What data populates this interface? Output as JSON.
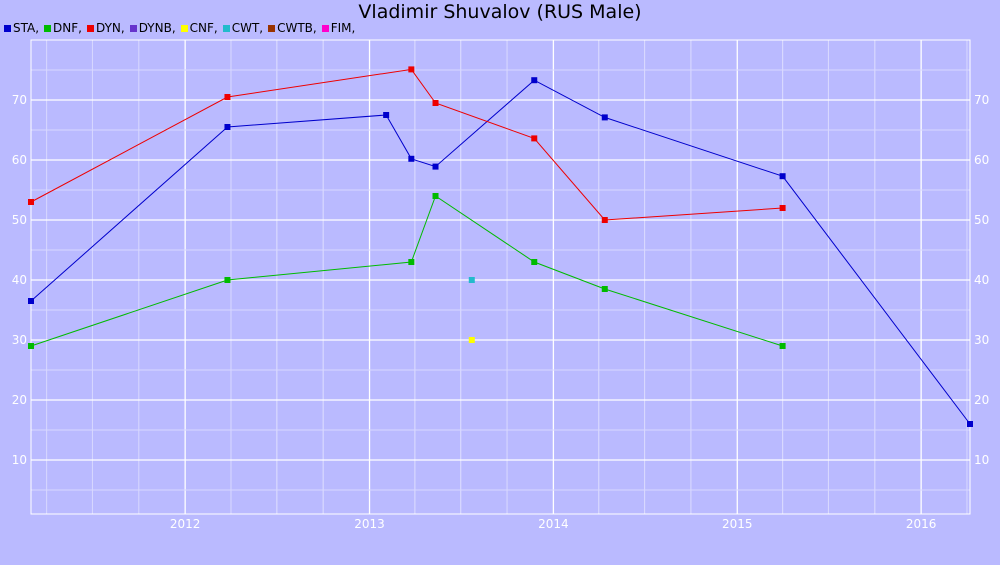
{
  "chart_data": {
    "type": "line",
    "title": "Vladimir Shuvalov (RUS Male)",
    "xlabel": "",
    "ylabel": "",
    "x_ticks": [
      "2012",
      "2013",
      "2014",
      "2015",
      "2016"
    ],
    "y_ticks": [
      10,
      20,
      30,
      40,
      50,
      60,
      70
    ],
    "xlim": [
      "2011-03-01",
      "2016-04-07"
    ],
    "ylim": [
      1,
      80
    ],
    "grid": true,
    "legend_position": "top-left",
    "legend": [
      {
        "label": "STA,",
        "color": "#0000cc"
      },
      {
        "label": "DNF,",
        "color": "#00bb00"
      },
      {
        "label": "DYN,",
        "color": "#ee0000"
      },
      {
        "label": "DYNB,",
        "color": "#6633cc"
      },
      {
        "label": "CNF,",
        "color": "#ffff00"
      },
      {
        "label": "CWT,",
        "color": "#22bbcc"
      },
      {
        "label": "CWTB,",
        "color": "#993300"
      },
      {
        "label": "FIM,",
        "color": "#ff00cc"
      }
    ],
    "series": [
      {
        "name": "STA",
        "color": "#0000cc",
        "points": [
          {
            "x": "2011-03-01",
            "y": 36.5
          },
          {
            "x": "2012-03-25",
            "y": 65.5
          },
          {
            "x": "2013-02-03",
            "y": 67.5
          },
          {
            "x": "2013-03-25",
            "y": 60.2
          },
          {
            "x": "2013-05-12",
            "y": 58.9
          },
          {
            "x": "2013-11-24",
            "y": 73.3
          },
          {
            "x": "2014-04-13",
            "y": 67.1
          },
          {
            "x": "2015-04-01",
            "y": 57.3
          },
          {
            "x": "2016-04-07",
            "y": 16.0
          }
        ]
      },
      {
        "name": "DNF",
        "color": "#00bb00",
        "points": [
          {
            "x": "2011-03-01",
            "y": 29.0
          },
          {
            "x": "2012-03-25",
            "y": 40.0
          },
          {
            "x": "2013-03-25",
            "y": 43.0
          },
          {
            "x": "2013-05-12",
            "y": 54.0
          },
          {
            "x": "2013-11-24",
            "y": 43.0
          },
          {
            "x": "2014-04-13",
            "y": 38.5
          },
          {
            "x": "2015-04-01",
            "y": 29.0
          }
        ]
      },
      {
        "name": "DYN",
        "color": "#ee0000",
        "points": [
          {
            "x": "2011-03-01",
            "y": 53.0
          },
          {
            "x": "2012-03-25",
            "y": 70.5
          },
          {
            "x": "2013-03-25",
            "y": 75.1
          },
          {
            "x": "2013-05-12",
            "y": 69.5
          },
          {
            "x": "2013-11-24",
            "y": 63.6
          },
          {
            "x": "2014-04-13",
            "y": 50.0
          },
          {
            "x": "2015-04-01",
            "y": 52.0
          }
        ]
      },
      {
        "name": "CNF",
        "color": "#ffff00",
        "points": [
          {
            "x": "2013-07-23",
            "y": 30.0
          }
        ]
      },
      {
        "name": "CWT",
        "color": "#22bbcc",
        "points": [
          {
            "x": "2013-07-23",
            "y": 40.0
          }
        ]
      }
    ]
  }
}
